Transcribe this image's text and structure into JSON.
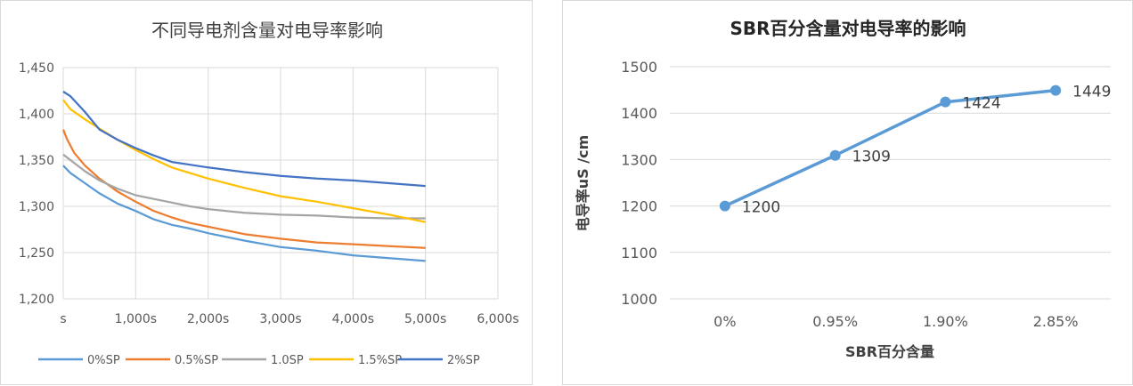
{
  "chart_data": [
    {
      "type": "line",
      "title": "不同导电剂含量对电导率影响",
      "xlabel": "",
      "ylabel": "",
      "xlim": [
        0,
        6000
      ],
      "ylim": [
        1200,
        1450
      ],
      "x_ticks": [
        "s",
        "1,000s",
        "2,000s",
        "3,000s",
        "4,000s",
        "5,000s",
        "6,000s"
      ],
      "y_ticks": [
        "1,200",
        "1,250",
        "1,300",
        "1,350",
        "1,400",
        "1,450"
      ],
      "grid": true,
      "legend_position": "bottom",
      "series": [
        {
          "name": "0%SP",
          "color": "#5B9BD5",
          "x": [
            0,
            100,
            300,
            500,
            750,
            1000,
            1250,
            1500,
            1750,
            2000,
            2500,
            3000,
            3500,
            4000,
            4500,
            5000
          ],
          "y": [
            1344,
            1336,
            1325,
            1314,
            1303,
            1295,
            1286,
            1280,
            1276,
            1271,
            1263,
            1256,
            1252,
            1247,
            1244,
            1241
          ]
        },
        {
          "name": "0.5%SP",
          "color": "#ED7D31",
          "x": [
            0,
            50,
            150,
            300,
            500,
            750,
            1000,
            1250,
            1500,
            1750,
            2000,
            2500,
            3000,
            3500,
            4000,
            4500,
            5000
          ],
          "y": [
            1383,
            1373,
            1358,
            1344,
            1330,
            1316,
            1305,
            1295,
            1288,
            1282,
            1278,
            1270,
            1265,
            1261,
            1259,
            1257,
            1255
          ]
        },
        {
          "name": "1.0SP",
          "color": "#A5A5A5",
          "x": [
            0,
            100,
            300,
            500,
            750,
            1000,
            1250,
            1500,
            1750,
            2000,
            2500,
            3000,
            3500,
            4000,
            4500,
            5000
          ],
          "y": [
            1356,
            1350,
            1338,
            1328,
            1319,
            1312,
            1308,
            1304,
            1300,
            1297,
            1293,
            1291,
            1290,
            1288,
            1287,
            1287
          ]
        },
        {
          "name": "1.5%SP",
          "color": "#FFC000",
          "x": [
            0,
            100,
            300,
            500,
            750,
            1000,
            1250,
            1500,
            1750,
            2000,
            2500,
            3000,
            3500,
            4000,
            4500,
            5000
          ],
          "y": [
            1415,
            1405,
            1394,
            1384,
            1372,
            1361,
            1351,
            1342,
            1336,
            1330,
            1320,
            1311,
            1305,
            1298,
            1291,
            1283
          ]
        },
        {
          "name": "2%SP",
          "color": "#4472C4",
          "x": [
            0,
            100,
            300,
            500,
            750,
            1000,
            1250,
            1500,
            1750,
            2000,
            2500,
            3000,
            3500,
            4000,
            4500,
            5000
          ],
          "y": [
            1424,
            1419,
            1402,
            1383,
            1372,
            1363,
            1355,
            1348,
            1345,
            1342,
            1337,
            1333,
            1330,
            1328,
            1325,
            1322
          ]
        }
      ]
    },
    {
      "type": "line",
      "title": "SBR百分含量对电导率的影响",
      "xlabel": "SBR百分含量",
      "ylabel": "电导率uS /cm",
      "categories": [
        "0%",
        "0.95%",
        "1.90%",
        "2.85%"
      ],
      "values": [
        1200,
        1309,
        1424,
        1449
      ],
      "data_labels": [
        "1200",
        "1309",
        "1424",
        "1449"
      ],
      "ylim": [
        1000,
        1500
      ],
      "y_ticks": [
        "1000",
        "1100",
        "1200",
        "1300",
        "1400",
        "1500"
      ],
      "grid": true,
      "color": "#5B9BD5"
    }
  ]
}
